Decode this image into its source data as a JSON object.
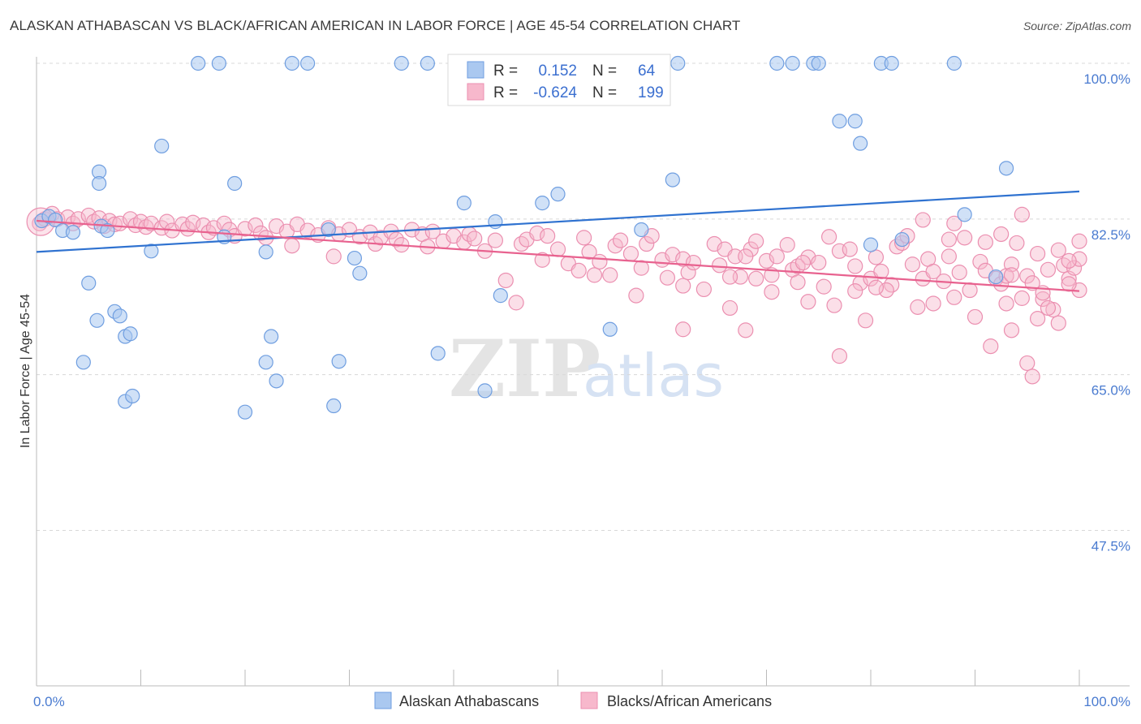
{
  "title": "ALASKAN ATHABASCAN VS BLACK/AFRICAN AMERICAN IN LABOR FORCE | AGE 45-54 CORRELATION CHART",
  "source": "Source: ZipAtlas.com",
  "watermark": {
    "zip": "ZIP",
    "atlas": "atlas"
  },
  "colors": {
    "blue_fill": "#aac8f0",
    "blue_stroke": "#6f9ee0",
    "blue_line": "#2f72d0",
    "pink_fill": "#f7b8cc",
    "pink_stroke": "#eb8fb0",
    "pink_line": "#e8628f",
    "grid": "#d8d8d8",
    "axis_text": "#4a7bd0"
  },
  "legend": {
    "rows": [
      {
        "r_label": "R =",
        "r_value": "0.152",
        "n_label": "N =",
        "n_value": "64"
      },
      {
        "r_label": "R =",
        "r_value": "-0.624",
        "n_label": "N =",
        "n_value": "199"
      }
    ]
  },
  "bottom_legend": {
    "blue": "Alaskan Athabascans",
    "pink": "Blacks/African Americans"
  },
  "chart_data": {
    "type": "scatter",
    "title": "ALASKAN ATHABASCAN VS BLACK/AFRICAN AMERICAN IN LABOR FORCE | AGE 45-54 CORRELATION CHART",
    "xlabel": "",
    "ylabel": "In Labor Force | Age 45-54",
    "xlim": [
      0,
      100
    ],
    "ylim": [
      30,
      102
    ],
    "x_tick_labels": [
      "0.0%",
      "100.0%"
    ],
    "y_tick_labels": [
      {
        "value": 100,
        "label": "100.0%"
      },
      {
        "value": 82.5,
        "label": "82.5%"
      },
      {
        "value": 65,
        "label": "65.0%"
      },
      {
        "value": 47.5,
        "label": "47.5%"
      }
    ],
    "grid": true,
    "legend_position": "top-center",
    "series": [
      {
        "name": "Alaskan Athabascans",
        "trend": {
          "x": [
            0,
            100
          ],
          "y": [
            78.8,
            85.6
          ]
        },
        "points": [
          [
            0.5,
            82.3
          ],
          [
            1.2,
            82.8
          ],
          [
            1.8,
            82.4
          ],
          [
            2.5,
            81.2
          ],
          [
            3.5,
            81.0
          ],
          [
            5,
            75.3
          ],
          [
            4.5,
            66.4
          ],
          [
            5.8,
            71.1
          ],
          [
            6,
            87.8
          ],
          [
            6,
            86.5
          ],
          [
            6.2,
            81.7
          ],
          [
            6.8,
            81.2
          ],
          [
            7.5,
            72.1
          ],
          [
            8,
            71.6
          ],
          [
            8.5,
            69.3
          ],
          [
            8.5,
            62.0
          ],
          [
            9,
            69.6
          ],
          [
            9.2,
            62.6
          ],
          [
            11,
            78.9
          ],
          [
            12,
            90.7
          ],
          [
            15.5,
            100
          ],
          [
            17.5,
            100
          ],
          [
            18,
            80.5
          ],
          [
            19,
            86.5
          ],
          [
            20,
            60.8
          ],
          [
            22,
            78.8
          ],
          [
            22,
            66.4
          ],
          [
            22.5,
            69.3
          ],
          [
            23,
            64.3
          ],
          [
            24.5,
            100
          ],
          [
            26,
            100
          ],
          [
            28,
            81.3
          ],
          [
            28.5,
            61.5
          ],
          [
            29,
            66.5
          ],
          [
            30.5,
            78.1
          ],
          [
            31,
            76.4
          ],
          [
            35,
            100
          ],
          [
            37.5,
            100
          ],
          [
            38.5,
            67.4
          ],
          [
            41,
            84.3
          ],
          [
            43,
            63.2
          ],
          [
            44,
            82.2
          ],
          [
            44.5,
            73.9
          ],
          [
            48.5,
            84.3
          ],
          [
            50,
            85.3
          ],
          [
            55,
            70.1
          ],
          [
            58,
            81.3
          ],
          [
            61,
            86.9
          ],
          [
            61.5,
            100
          ],
          [
            71,
            100
          ],
          [
            72.5,
            100
          ],
          [
            74.5,
            100
          ],
          [
            75,
            100
          ],
          [
            77,
            93.5
          ],
          [
            78.5,
            93.5
          ],
          [
            79,
            91.0
          ],
          [
            80,
            79.6
          ],
          [
            81,
            100
          ],
          [
            82,
            100
          ],
          [
            83,
            80.2
          ],
          [
            88,
            100
          ],
          [
            89,
            83.0
          ],
          [
            92,
            76.0
          ],
          [
            93,
            88.2
          ]
        ],
        "points_note": "approximate, read from the plot"
      },
      {
        "name": "Blacks/African Americans",
        "trend": {
          "x": [
            0,
            100
          ],
          "y": [
            82.3,
            74.4
          ]
        },
        "points": [
          [
            0.3,
            82.0
          ],
          [
            0.8,
            82.5
          ],
          [
            1.5,
            83.1
          ],
          [
            2,
            82.5
          ],
          [
            3,
            82.7
          ],
          [
            3.5,
            82.0
          ],
          [
            4,
            82.5
          ],
          [
            5,
            82.9
          ],
          [
            5.5,
            82.2
          ],
          [
            6,
            82.6
          ],
          [
            6.5,
            81.7
          ],
          [
            7,
            82.3
          ],
          [
            7.5,
            81.9
          ],
          [
            8,
            82.0
          ],
          [
            9,
            82.5
          ],
          [
            9.5,
            81.8
          ],
          [
            10,
            82.2
          ],
          [
            10.5,
            81.6
          ],
          [
            11,
            82.0
          ],
          [
            12,
            81.5
          ],
          [
            12.5,
            82.2
          ],
          [
            13,
            81.2
          ],
          [
            14,
            81.9
          ],
          [
            14.5,
            81.4
          ],
          [
            15,
            82.1
          ],
          [
            16,
            81.8
          ],
          [
            16.5,
            81.0
          ],
          [
            17,
            81.5
          ],
          [
            18,
            82.0
          ],
          [
            18.5,
            81.3
          ],
          [
            19,
            80.6
          ],
          [
            20,
            81.4
          ],
          [
            21,
            81.8
          ],
          [
            21.5,
            80.9
          ],
          [
            22,
            80.4
          ],
          [
            23,
            81.7
          ],
          [
            24,
            81.1
          ],
          [
            24.5,
            79.5
          ],
          [
            25,
            81.9
          ],
          [
            26,
            81.2
          ],
          [
            27,
            80.7
          ],
          [
            28,
            81.5
          ],
          [
            28.5,
            78.3
          ],
          [
            29,
            80.8
          ],
          [
            30,
            81.3
          ],
          [
            31,
            80.5
          ],
          [
            32,
            81.0
          ],
          [
            32.5,
            79.7
          ],
          [
            33,
            80.4
          ],
          [
            34,
            81.1
          ],
          [
            34.5,
            80.2
          ],
          [
            35,
            79.6
          ],
          [
            36,
            81.3
          ],
          [
            37,
            80.8
          ],
          [
            37.5,
            79.4
          ],
          [
            38,
            81.1
          ],
          [
            39,
            80.0
          ],
          [
            40,
            80.6
          ],
          [
            41,
            79.9
          ],
          [
            41.5,
            80.8
          ],
          [
            42,
            80.3
          ],
          [
            43,
            78.9
          ],
          [
            44,
            80.1
          ],
          [
            45,
            75.6
          ],
          [
            46,
            73.1
          ],
          [
            46.5,
            79.7
          ],
          [
            47,
            80.2
          ],
          [
            48,
            80.9
          ],
          [
            48.5,
            77.9
          ],
          [
            49,
            80.6
          ],
          [
            50,
            79.1
          ],
          [
            51,
            77.5
          ],
          [
            52,
            76.7
          ],
          [
            52.5,
            80.4
          ],
          [
            53,
            78.8
          ],
          [
            54,
            77.7
          ],
          [
            55,
            76.2
          ],
          [
            55.5,
            79.5
          ],
          [
            56,
            80.1
          ],
          [
            57,
            78.6
          ],
          [
            58,
            77.0
          ],
          [
            58.5,
            79.7
          ],
          [
            59,
            80.6
          ],
          [
            60,
            77.9
          ],
          [
            60.5,
            75.9
          ],
          [
            61,
            78.5
          ],
          [
            62,
            78.0
          ],
          [
            62.5,
            76.5
          ],
          [
            63,
            77.6
          ],
          [
            64,
            74.6
          ],
          [
            65,
            79.7
          ],
          [
            65.5,
            77.3
          ],
          [
            66,
            79.1
          ],
          [
            67,
            78.3
          ],
          [
            67.5,
            76.0
          ],
          [
            68,
            70.0
          ],
          [
            68.5,
            79.1
          ],
          [
            69,
            80.0
          ],
          [
            70,
            77.8
          ],
          [
            70.5,
            76.2
          ],
          [
            71,
            78.3
          ],
          [
            72,
            79.6
          ],
          [
            72.5,
            76.8
          ],
          [
            73,
            75.4
          ],
          [
            74,
            78.2
          ],
          [
            75,
            77.6
          ],
          [
            76,
            80.5
          ],
          [
            77,
            78.9
          ],
          [
            78,
            79.1
          ],
          [
            78.5,
            77.2
          ],
          [
            79,
            75.3
          ],
          [
            80,
            75.8
          ],
          [
            80.5,
            78.2
          ],
          [
            81,
            76.6
          ],
          [
            82,
            75.1
          ],
          [
            82.5,
            79.4
          ],
          [
            83,
            79.8
          ],
          [
            84,
            77.4
          ],
          [
            85,
            75.8
          ],
          [
            85.5,
            78.0
          ],
          [
            86,
            76.6
          ],
          [
            87,
            75.5
          ],
          [
            87.5,
            78.3
          ],
          [
            88,
            73.7
          ],
          [
            88.5,
            76.5
          ],
          [
            89,
            80.4
          ],
          [
            90,
            71.5
          ],
          [
            90.5,
            77.7
          ],
          [
            91,
            79.9
          ],
          [
            92,
            75.8
          ],
          [
            92.5,
            75.2
          ],
          [
            93,
            73.0
          ],
          [
            93.5,
            77.4
          ],
          [
            94,
            79.8
          ],
          [
            94.5,
            73.6
          ],
          [
            95,
            76.1
          ],
          [
            95.5,
            75.3
          ],
          [
            96,
            78.6
          ],
          [
            96.5,
            73.5
          ],
          [
            97,
            76.8
          ],
          [
            97.5,
            72.3
          ],
          [
            98,
            79.0
          ],
          [
            98.5,
            77.3
          ],
          [
            99,
            75.8
          ],
          [
            99.5,
            77.0
          ],
          [
            100,
            74.5
          ],
          [
            53.5,
            76.2
          ],
          [
            57.5,
            73.9
          ],
          [
            62,
            75.0
          ],
          [
            66.5,
            72.5
          ],
          [
            70.5,
            74.3
          ],
          [
            74,
            73.2
          ],
          [
            76.5,
            72.8
          ],
          [
            79.5,
            71.1
          ],
          [
            81.5,
            74.5
          ],
          [
            84.5,
            72.6
          ],
          [
            86,
            73.0
          ],
          [
            88,
            82.0
          ],
          [
            89.5,
            74.5
          ],
          [
            91.5,
            68.2
          ],
          [
            92.5,
            80.8
          ],
          [
            93.5,
            70.0
          ],
          [
            94.5,
            83.0
          ],
          [
            95,
            66.3
          ],
          [
            95.5,
            64.8
          ],
          [
            96,
            71.3
          ],
          [
            97,
            72.5
          ],
          [
            98,
            70.8
          ],
          [
            99,
            75.2
          ],
          [
            100,
            78.0
          ],
          [
            66.5,
            76.0
          ],
          [
            69,
            75.8
          ],
          [
            73,
            77.2
          ],
          [
            75.5,
            74.9
          ],
          [
            78.5,
            74.4
          ],
          [
            80.5,
            74.8
          ],
          [
            83.5,
            80.6
          ],
          [
            85,
            82.4
          ],
          [
            87.5,
            80.2
          ],
          [
            91,
            76.7
          ],
          [
            93,
            76.1
          ],
          [
            96.5,
            74.2
          ],
          [
            99,
            77.8
          ],
          [
            100,
            80.0
          ],
          [
            62,
            70.1
          ],
          [
            77,
            67.1
          ],
          [
            93.5,
            76.2
          ],
          [
            68,
            78.3
          ],
          [
            73.5,
            77.6
          ]
        ],
        "points_note": "approximate, read from the plot"
      }
    ]
  }
}
